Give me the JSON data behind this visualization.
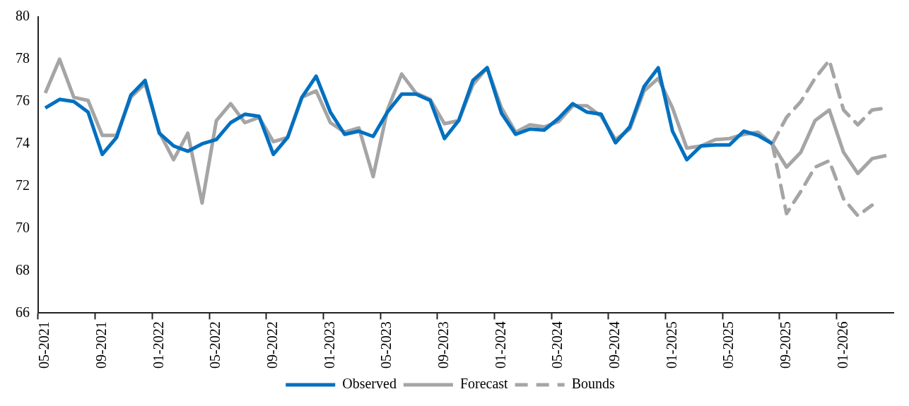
{
  "chart_data": {
    "type": "line",
    "categories": [
      "05-2021",
      null,
      null,
      null,
      "09-2021",
      null,
      null,
      null,
      "01-2022",
      null,
      null,
      null,
      "05-2022",
      null,
      null,
      null,
      "09-2022",
      null,
      null,
      null,
      "01-2023",
      null,
      null,
      null,
      "05-2023",
      null,
      null,
      null,
      "09-2023",
      null,
      null,
      null,
      "01-2024",
      null,
      null,
      null,
      "05-2024",
      null,
      null,
      null,
      "09-2024",
      null,
      null,
      null,
      "01-2025",
      null,
      null,
      null,
      "05-2025",
      null,
      null,
      null,
      "09-2025",
      null,
      null,
      null,
      "01-2026",
      null,
      null,
      null
    ],
    "series": [
      {
        "name": "Observed",
        "color": "#0070c0",
        "line_style": "solid",
        "values": [
          75.7,
          76.1,
          76.0,
          75.5,
          73.5,
          74.3,
          76.3,
          77.0,
          74.5,
          73.9,
          73.65,
          74.0,
          74.2,
          75.0,
          75.4,
          75.3,
          73.5,
          74.3,
          76.2,
          77.2,
          75.5,
          74.45,
          74.6,
          74.35,
          75.5,
          76.35,
          76.35,
          76.05,
          74.25,
          75.1,
          77.0,
          77.6,
          75.45,
          74.45,
          74.7,
          74.65,
          75.2,
          75.9,
          75.5,
          75.4,
          74.05,
          74.8,
          76.7,
          77.6,
          74.6,
          73.25,
          73.9,
          73.95,
          73.95,
          74.6,
          74.4,
          74.0,
          null,
          null,
          null,
          null,
          null,
          null,
          null,
          null
        ]
      },
      {
        "name": "Forecast",
        "color": "#a5a5a5",
        "line_style": "solid",
        "values": [
          76.4,
          78.0,
          76.2,
          76.05,
          74.4,
          74.4,
          76.2,
          76.85,
          74.55,
          73.25,
          74.5,
          71.2,
          75.1,
          75.9,
          75.0,
          75.25,
          74.1,
          74.3,
          76.2,
          76.5,
          75.0,
          74.55,
          74.75,
          72.45,
          75.6,
          77.3,
          76.4,
          76.1,
          74.95,
          75.1,
          76.8,
          77.6,
          75.7,
          74.55,
          74.9,
          74.8,
          75.05,
          75.8,
          75.8,
          75.3,
          74.2,
          74.7,
          76.5,
          77.1,
          75.7,
          73.8,
          73.9,
          74.2,
          74.25,
          74.45,
          74.55,
          74.0,
          72.9,
          73.6,
          75.1,
          75.6,
          73.6,
          72.6,
          73.3,
          73.45
        ]
      },
      {
        "name": "Bounds",
        "color": "#a5a5a5",
        "line_style": "dashed",
        "values": [
          null,
          null,
          null,
          null,
          null,
          null,
          null,
          null,
          null,
          null,
          null,
          null,
          null,
          null,
          null,
          null,
          null,
          null,
          null,
          null,
          null,
          null,
          null,
          null,
          null,
          null,
          null,
          null,
          null,
          null,
          null,
          null,
          null,
          null,
          null,
          null,
          null,
          null,
          null,
          null,
          null,
          null,
          null,
          null,
          null,
          null,
          null,
          null,
          null,
          null,
          null,
          74.0,
          75.25,
          76.0,
          77.1,
          77.95,
          75.6,
          74.9,
          75.6,
          75.7
        ]
      },
      {
        "color": "#a5a5a5",
        "line_style": "dashed",
        "values": [
          null,
          null,
          null,
          null,
          null,
          null,
          null,
          null,
          null,
          null,
          null,
          null,
          null,
          null,
          null,
          null,
          null,
          null,
          null,
          null,
          null,
          null,
          null,
          null,
          null,
          null,
          null,
          null,
          null,
          null,
          null,
          null,
          null,
          null,
          null,
          null,
          null,
          null,
          null,
          null,
          null,
          null,
          null,
          null,
          null,
          null,
          null,
          null,
          null,
          null,
          null,
          74.0,
          70.7,
          71.75,
          72.9,
          73.2,
          71.4,
          70.6,
          71.1,
          null
        ]
      }
    ],
    "ylim": [
      66,
      80
    ],
    "yticks": [
      66,
      68,
      70,
      72,
      74,
      76,
      78,
      80
    ],
    "grid": false,
    "legend": "bottom",
    "marker": "none"
  }
}
